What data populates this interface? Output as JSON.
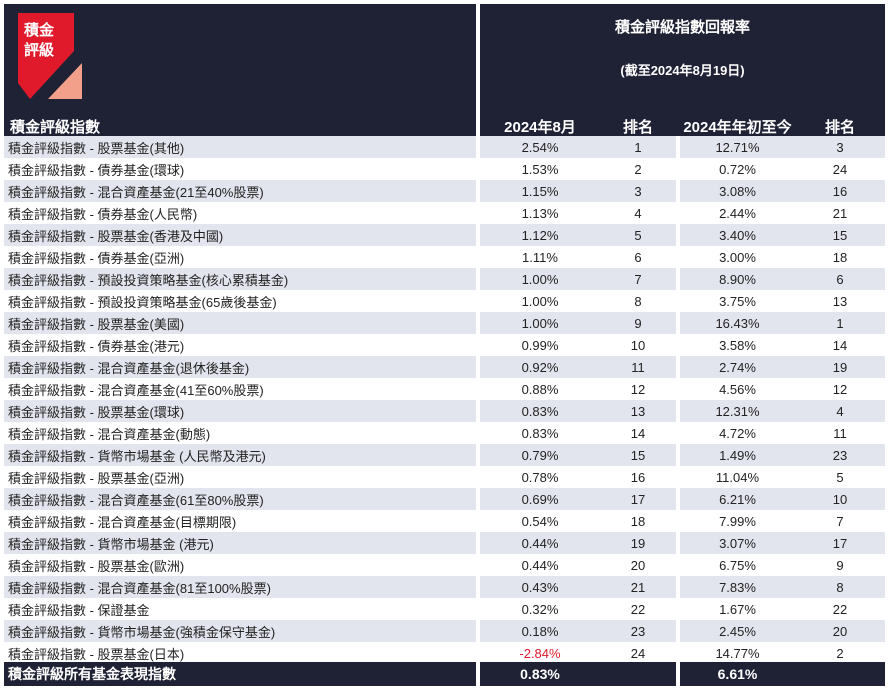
{
  "header": {
    "logo_text": "積金評級",
    "title": "積金評級指數回報率",
    "subtitle": "(截至2024年8月19日)",
    "col_index": "積金評級指數",
    "col_aug": "2024年8月",
    "col_rank1": "排名",
    "col_ytd": "2024年年初至今",
    "col_rank2": "排名"
  },
  "colors": {
    "header_bg": "#1f2235",
    "logo_red": "#e0192b",
    "logo_pink": "#f2a08a",
    "row_alt": "#e3e5ee",
    "negative": "#e0192b"
  },
  "rows": [
    {
      "name": "積金評級指數 - 股票基金(其他)",
      "aug": "2.54%",
      "rank1": "1",
      "ytd": "12.71%",
      "rank2": "3"
    },
    {
      "name": "積金評級指數 - 債券基金(環球)",
      "aug": "1.53%",
      "rank1": "2",
      "ytd": "0.72%",
      "rank2": "24"
    },
    {
      "name": "積金評級指數 - 混合資產基金(21至40%股票)",
      "aug": "1.15%",
      "rank1": "3",
      "ytd": "3.08%",
      "rank2": "16"
    },
    {
      "name": "積金評級指數 - 債券基金(人民幣)",
      "aug": "1.13%",
      "rank1": "4",
      "ytd": "2.44%",
      "rank2": "21"
    },
    {
      "name": "積金評級指數 - 股票基金(香港及中國)",
      "aug": "1.12%",
      "rank1": "5",
      "ytd": "3.40%",
      "rank2": "15"
    },
    {
      "name": "積金評級指數 - 債券基金(亞洲)",
      "aug": "1.11%",
      "rank1": "6",
      "ytd": "3.00%",
      "rank2": "18"
    },
    {
      "name": "積金評級指數 - 預設投資策略基金(核心累積基金)",
      "aug": "1.00%",
      "rank1": "7",
      "ytd": "8.90%",
      "rank2": "6"
    },
    {
      "name": "積金評級指數 - 預設投資策略基金(65歲後基金)",
      "aug": "1.00%",
      "rank1": "8",
      "ytd": "3.75%",
      "rank2": "13"
    },
    {
      "name": "積金評級指數 - 股票基金(美國)",
      "aug": "1.00%",
      "rank1": "9",
      "ytd": "16.43%",
      "rank2": "1"
    },
    {
      "name": "積金評級指數 - 債券基金(港元)",
      "aug": "0.99%",
      "rank1": "10",
      "ytd": "3.58%",
      "rank2": "14"
    },
    {
      "name": "積金評級指數 - 混合資產基金(退休後基金)",
      "aug": "0.92%",
      "rank1": "11",
      "ytd": "2.74%",
      "rank2": "19"
    },
    {
      "name": "積金評級指數 - 混合資產基金(41至60%股票)",
      "aug": "0.88%",
      "rank1": "12",
      "ytd": "4.56%",
      "rank2": "12"
    },
    {
      "name": "積金評級指數 - 股票基金(環球)",
      "aug": "0.83%",
      "rank1": "13",
      "ytd": "12.31%",
      "rank2": "4"
    },
    {
      "name": "積金評級指數 - 混合資產基金(動態)",
      "aug": "0.83%",
      "rank1": "14",
      "ytd": "4.72%",
      "rank2": "11"
    },
    {
      "name": "積金評級指數 - 貨幣市場基金 (人民幣及港元)",
      "aug": "0.79%",
      "rank1": "15",
      "ytd": "1.49%",
      "rank2": "23"
    },
    {
      "name": "積金評級指數 - 股票基金(亞洲)",
      "aug": "0.78%",
      "rank1": "16",
      "ytd": "11.04%",
      "rank2": "5"
    },
    {
      "name": "積金評級指數 - 混合資產基金(61至80%股票)",
      "aug": "0.69%",
      "rank1": "17",
      "ytd": "6.21%",
      "rank2": "10"
    },
    {
      "name": "積金評級指數 - 混合資產基金(目標期限)",
      "aug": "0.54%",
      "rank1": "18",
      "ytd": "7.99%",
      "rank2": "7"
    },
    {
      "name": "積金評級指數 - 貨幣市場基金 (港元)",
      "aug": "0.44%",
      "rank1": "19",
      "ytd": "3.07%",
      "rank2": "17"
    },
    {
      "name": "積金評級指數 - 股票基金(歐洲)",
      "aug": "0.44%",
      "rank1": "20",
      "ytd": "6.75%",
      "rank2": "9"
    },
    {
      "name": "積金評級指數 - 混合資產基金(81至100%股票)",
      "aug": "0.43%",
      "rank1": "21",
      "ytd": "7.83%",
      "rank2": "8"
    },
    {
      "name": "積金評級指數 - 保證基金",
      "aug": "0.32%",
      "rank1": "22",
      "ytd": "1.67%",
      "rank2": "22"
    },
    {
      "name": "積金評級指數 - 貨幣市場基金(強積金保守基金)",
      "aug": "0.18%",
      "rank1": "23",
      "ytd": "2.45%",
      "rank2": "20"
    },
    {
      "name": "積金評級指數 - 股票基金(日本)",
      "aug": "-2.84%",
      "rank1": "24",
      "ytd": "14.77%",
      "rank2": "2"
    }
  ],
  "footer": {
    "name": "積金評級所有基金表現指數",
    "aug": "0.83%",
    "ytd": "6.61%"
  }
}
